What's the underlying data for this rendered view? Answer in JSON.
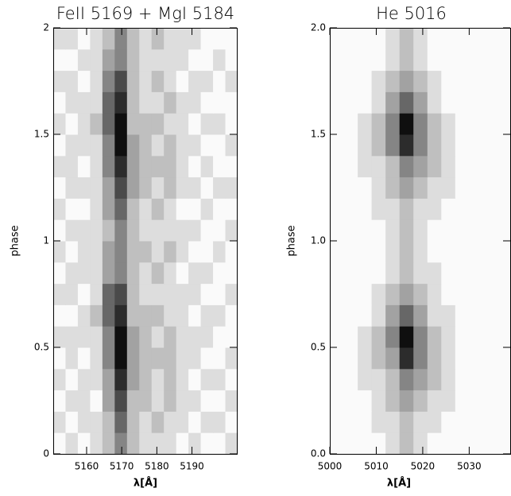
{
  "chart_data": [
    {
      "type": "heatmap",
      "title": "FeII 5169 + MgI 5184",
      "x_label": "λ[Å]",
      "y_label": "phase",
      "xlim": [
        5150.5,
        5203
      ],
      "ylim": [
        0,
        2
      ],
      "xticks": [
        5160,
        5170,
        5180,
        5190
      ],
      "yticks": [
        0,
        0.5,
        1,
        1.5,
        2
      ],
      "x_bins": [
        5150.5,
        5154,
        5157.5,
        5161,
        5164.5,
        5168,
        5171.5,
        5175,
        5178.5,
        5182,
        5185.5,
        5189,
        5192.5,
        5196,
        5199.5,
        5203
      ],
      "y_bins": [
        0,
        0.1,
        0.2,
        0.3,
        0.4,
        0.5,
        0.6,
        0.7,
        0.8,
        0.9,
        1,
        1.1,
        1.2,
        1.3,
        1.4,
        1.5,
        1.6,
        1.7,
        1.8,
        1.9,
        2
      ],
      "values": [
        [
          1,
          2,
          1,
          2,
          3,
          5,
          3,
          2,
          2,
          2,
          1,
          2,
          1,
          1,
          2
        ],
        [
          2,
          1,
          2,
          2,
          3,
          6,
          3,
          2,
          3,
          2,
          2,
          1,
          2,
          2,
          1
        ],
        [
          1,
          2,
          2,
          1,
          4,
          7,
          3,
          3,
          2,
          3,
          2,
          2,
          1,
          1,
          2
        ],
        [
          2,
          1,
          2,
          2,
          4,
          8,
          4,
          3,
          2,
          3,
          2,
          1,
          2,
          2,
          1
        ],
        [
          1,
          2,
          1,
          2,
          5,
          9,
          4,
          3,
          3,
          3,
          2,
          2,
          1,
          1,
          2
        ],
        [
          2,
          2,
          2,
          2,
          5,
          9,
          4,
          3,
          2,
          3,
          2,
          2,
          2,
          1,
          1
        ],
        [
          1,
          1,
          2,
          3,
          6,
          8,
          3,
          3,
          3,
          2,
          2,
          1,
          2,
          2,
          1
        ],
        [
          2,
          2,
          1,
          2,
          6,
          7,
          3,
          2,
          2,
          2,
          2,
          2,
          1,
          1,
          2
        ],
        [
          1,
          2,
          2,
          2,
          4,
          5,
          3,
          2,
          3,
          2,
          1,
          2,
          2,
          1,
          1
        ],
        [
          2,
          1,
          2,
          2,
          4,
          5,
          3,
          3,
          2,
          3,
          2,
          1,
          1,
          2,
          1
        ],
        [
          1,
          2,
          2,
          2,
          3,
          5,
          3,
          2,
          2,
          2,
          2,
          2,
          1,
          1,
          2
        ],
        [
          2,
          1,
          1,
          2,
          4,
          6,
          3,
          2,
          3,
          2,
          1,
          1,
          2,
          1,
          1
        ],
        [
          1,
          2,
          2,
          2,
          4,
          7,
          4,
          3,
          2,
          3,
          2,
          2,
          1,
          2,
          2
        ],
        [
          2,
          2,
          1,
          2,
          5,
          8,
          4,
          3,
          3,
          3,
          2,
          1,
          2,
          1,
          1
        ],
        [
          1,
          2,
          2,
          2,
          5,
          9,
          4,
          3,
          2,
          3,
          2,
          2,
          1,
          1,
          2
        ],
        [
          2,
          1,
          2,
          3,
          6,
          9,
          3,
          3,
          3,
          2,
          2,
          1,
          2,
          2,
          1
        ],
        [
          1,
          2,
          2,
          2,
          6,
          8,
          3,
          2,
          2,
          3,
          2,
          2,
          1,
          1,
          1
        ],
        [
          2,
          2,
          1,
          2,
          5,
          7,
          3,
          2,
          3,
          2,
          1,
          2,
          2,
          1,
          2
        ],
        [
          1,
          1,
          2,
          2,
          4,
          5,
          3,
          2,
          2,
          2,
          2,
          1,
          1,
          2,
          1
        ],
        [
          2,
          2,
          1,
          2,
          3,
          5,
          3,
          2,
          3,
          2,
          2,
          2,
          1,
          1,
          1
        ]
      ]
    },
    {
      "type": "heatmap",
      "title": "He  5016",
      "x_label": "λ[Å]",
      "y_label": "phase",
      "xlim": [
        5000,
        5039
      ],
      "ylim": [
        0,
        2
      ],
      "xticks": [
        5000,
        5010,
        5020,
        5030
      ],
      "yticks": [
        {
          "value": 0,
          "label": "0.0"
        },
        {
          "value": 0.5,
          "label": "0.5"
        },
        {
          "value": 1,
          "label": "1.0"
        },
        {
          "value": 1.5,
          "label": "1.5"
        },
        {
          "value": 2,
          "label": "2.0"
        }
      ],
      "x_bins": [
        5000,
        5003,
        5006,
        5009,
        5012,
        5015,
        5018,
        5021,
        5024,
        5027,
        5030,
        5033,
        5036,
        5039
      ],
      "y_bins": [
        0,
        0.1,
        0.2,
        0.3,
        0.4,
        0.5,
        0.6,
        0.7,
        0.8,
        0.9,
        1,
        1.1,
        1.2,
        1.3,
        1.4,
        1.5,
        1.6,
        1.7,
        1.8,
        1.9,
        2
      ],
      "values": [
        [
          1,
          1,
          1,
          1,
          2,
          3,
          2,
          1,
          1,
          1,
          1,
          1,
          1
        ],
        [
          1,
          1,
          1,
          2,
          2,
          3,
          2,
          2,
          1,
          1,
          1,
          1,
          1
        ],
        [
          1,
          1,
          1,
          2,
          3,
          4,
          3,
          2,
          2,
          1,
          1,
          1,
          1
        ],
        [
          1,
          1,
          2,
          2,
          3,
          5,
          4,
          3,
          2,
          1,
          1,
          1,
          1
        ],
        [
          1,
          1,
          2,
          3,
          4,
          8,
          5,
          3,
          2,
          1,
          1,
          1,
          1
        ],
        [
          1,
          1,
          2,
          3,
          5,
          9,
          5,
          3,
          2,
          1,
          1,
          1,
          1
        ],
        [
          1,
          1,
          1,
          2,
          4,
          6,
          4,
          2,
          2,
          1,
          1,
          1,
          1
        ],
        [
          1,
          1,
          1,
          2,
          3,
          4,
          3,
          2,
          1,
          1,
          1,
          1,
          1
        ],
        [
          1,
          1,
          1,
          1,
          2,
          3,
          2,
          2,
          1,
          1,
          1,
          1,
          1
        ],
        [
          1,
          1,
          1,
          1,
          2,
          3,
          2,
          1,
          1,
          1,
          1,
          1,
          1
        ],
        [
          1,
          1,
          1,
          1,
          2,
          3,
          2,
          1,
          1,
          1,
          1,
          1,
          1
        ],
        [
          1,
          1,
          1,
          2,
          2,
          3,
          2,
          2,
          1,
          1,
          1,
          1,
          1
        ],
        [
          1,
          1,
          1,
          2,
          3,
          4,
          3,
          2,
          2,
          1,
          1,
          1,
          1
        ],
        [
          1,
          1,
          2,
          2,
          3,
          5,
          4,
          3,
          2,
          1,
          1,
          1,
          1
        ],
        [
          1,
          1,
          2,
          3,
          5,
          8,
          5,
          3,
          2,
          1,
          1,
          1,
          1
        ],
        [
          1,
          1,
          2,
          3,
          5,
          9,
          5,
          3,
          2,
          1,
          1,
          1,
          1
        ],
        [
          1,
          1,
          1,
          2,
          4,
          6,
          4,
          2,
          1,
          1,
          1,
          1,
          1
        ],
        [
          1,
          1,
          1,
          2,
          3,
          4,
          3,
          2,
          1,
          1,
          1,
          1,
          1
        ],
        [
          1,
          1,
          1,
          1,
          2,
          3,
          2,
          1,
          1,
          1,
          1,
          1,
          1
        ],
        [
          1,
          1,
          1,
          1,
          2,
          3,
          2,
          1,
          1,
          1,
          1,
          1,
          1
        ]
      ]
    }
  ]
}
